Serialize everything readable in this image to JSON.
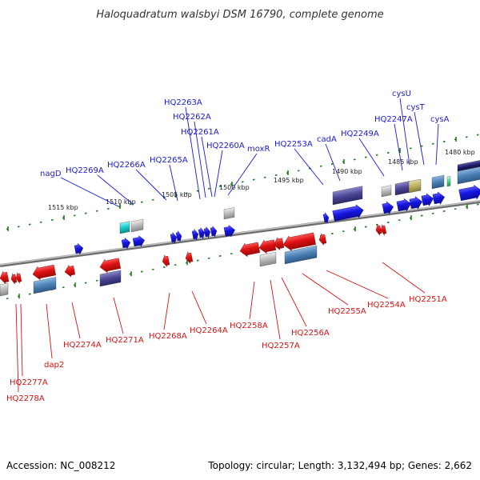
{
  "title": "Haloquadratum walsbyi DSM 16790, complete genome",
  "footer": {
    "accession": "Accession: NC_008212",
    "summary": "Topology: circular; Length: 3,132,494 bp; Genes: 2,662"
  },
  "colors": {
    "forward": "#1515e0",
    "reverse": "#e01010",
    "leader_fwd": "#1a1ad6",
    "leader_rev": "#d41414",
    "backbone": "#8a8a8a",
    "tick": "#1f7a1f"
  },
  "ticks": [
    {
      "label": "1515 kbp"
    },
    {
      "label": "1510 kbp"
    },
    {
      "label": "1505 kbp"
    },
    {
      "label": "1500 kbp"
    },
    {
      "label": "1495 kbp"
    },
    {
      "label": "1490 kbp"
    },
    {
      "label": "1485 kbp"
    },
    {
      "label": "1480 kbp"
    }
  ],
  "forward_genes": [
    {
      "label": "nagD"
    },
    {
      "label": "HQ2269A"
    },
    {
      "label": "HQ2266A"
    },
    {
      "label": "HQ2265A"
    },
    {
      "label": "HQ2263A"
    },
    {
      "label": "HQ2262A"
    },
    {
      "label": "HQ2261A"
    },
    {
      "label": "HQ2260A"
    },
    {
      "label": "moxR"
    },
    {
      "label": "HQ2253A"
    },
    {
      "label": "cadA"
    },
    {
      "label": "HQ2249A"
    },
    {
      "label": "HQ2247A"
    },
    {
      "label": "cysU"
    },
    {
      "label": "cysT"
    },
    {
      "label": "cysA"
    }
  ],
  "reverse_genes": [
    {
      "label": "HQ2278A"
    },
    {
      "label": "HQ2277A"
    },
    {
      "label": "dap2"
    },
    {
      "label": "HQ2274A"
    },
    {
      "label": "HQ2271A"
    },
    {
      "label": "HQ2268A"
    },
    {
      "label": "HQ2264A"
    },
    {
      "label": "HQ2258A"
    },
    {
      "label": "HQ2257A"
    },
    {
      "label": "HQ2256A"
    },
    {
      "label": "HQ2255A"
    },
    {
      "label": "HQ2254A"
    },
    {
      "label": "HQ2251A"
    }
  ]
}
